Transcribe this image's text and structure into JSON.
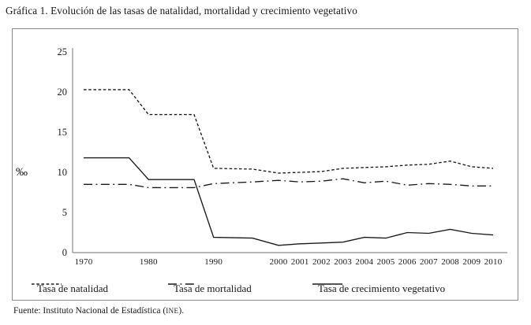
{
  "title": "Gráfica 1. Evolución de las tasas de natalidad, mortalidad y crecimiento vegetativo",
  "source_note": {
    "prefix": "Fuente: Instituto Nacional de Estadística (",
    "acronym": "INE",
    "suffix": ")."
  },
  "chart_data": {
    "type": "line",
    "y_unit": "‰",
    "ylim": [
      0,
      25
    ],
    "y_ticks": [
      0,
      5,
      10,
      15,
      20,
      25
    ],
    "x_tick_labels": [
      "1970",
      "1980",
      "1990",
      "2000",
      "2001",
      "2002",
      "2003",
      "2004",
      "2005",
      "2006",
      "2007",
      "2008",
      "2009",
      "2010"
    ],
    "x": [
      1970,
      1977,
      1980,
      1987,
      1990,
      1996,
      2000,
      2001,
      2002,
      2003,
      2004,
      2005,
      2006,
      2007,
      2008,
      2009,
      2010
    ],
    "series": [
      {
        "key": "natalidad",
        "name": "Tasa de natalidad",
        "style": "dashed",
        "values": [
          20.3,
          20.3,
          17.2,
          17.2,
          10.5,
          10.4,
          9.9,
          10.0,
          10.1,
          10.5,
          10.6,
          10.7,
          10.9,
          11.0,
          11.4,
          10.7,
          10.5
        ]
      },
      {
        "key": "mortalidad",
        "name": "Tasa de mortalidad",
        "style": "dashdot",
        "values": [
          8.5,
          8.5,
          8.1,
          8.1,
          8.6,
          8.8,
          9.0,
          8.8,
          8.9,
          9.2,
          8.7,
          8.9,
          8.4,
          8.6,
          8.5,
          8.3,
          8.3
        ]
      },
      {
        "key": "crecimiento-vegetativo",
        "name": "Tasa de crecimiento vegetativo",
        "style": "solid",
        "values": [
          11.8,
          11.8,
          9.1,
          9.1,
          1.9,
          1.8,
          0.9,
          1.1,
          1.2,
          1.3,
          1.9,
          1.8,
          2.5,
          2.4,
          2.9,
          2.4,
          2.2
        ]
      }
    ],
    "colors": {
      "line": "#1a1a1a",
      "axis": "#8a8a8a",
      "frame": "#8a8a8a",
      "text": "#1a1a1a"
    },
    "legend_position": "bottom",
    "grid": false
  }
}
